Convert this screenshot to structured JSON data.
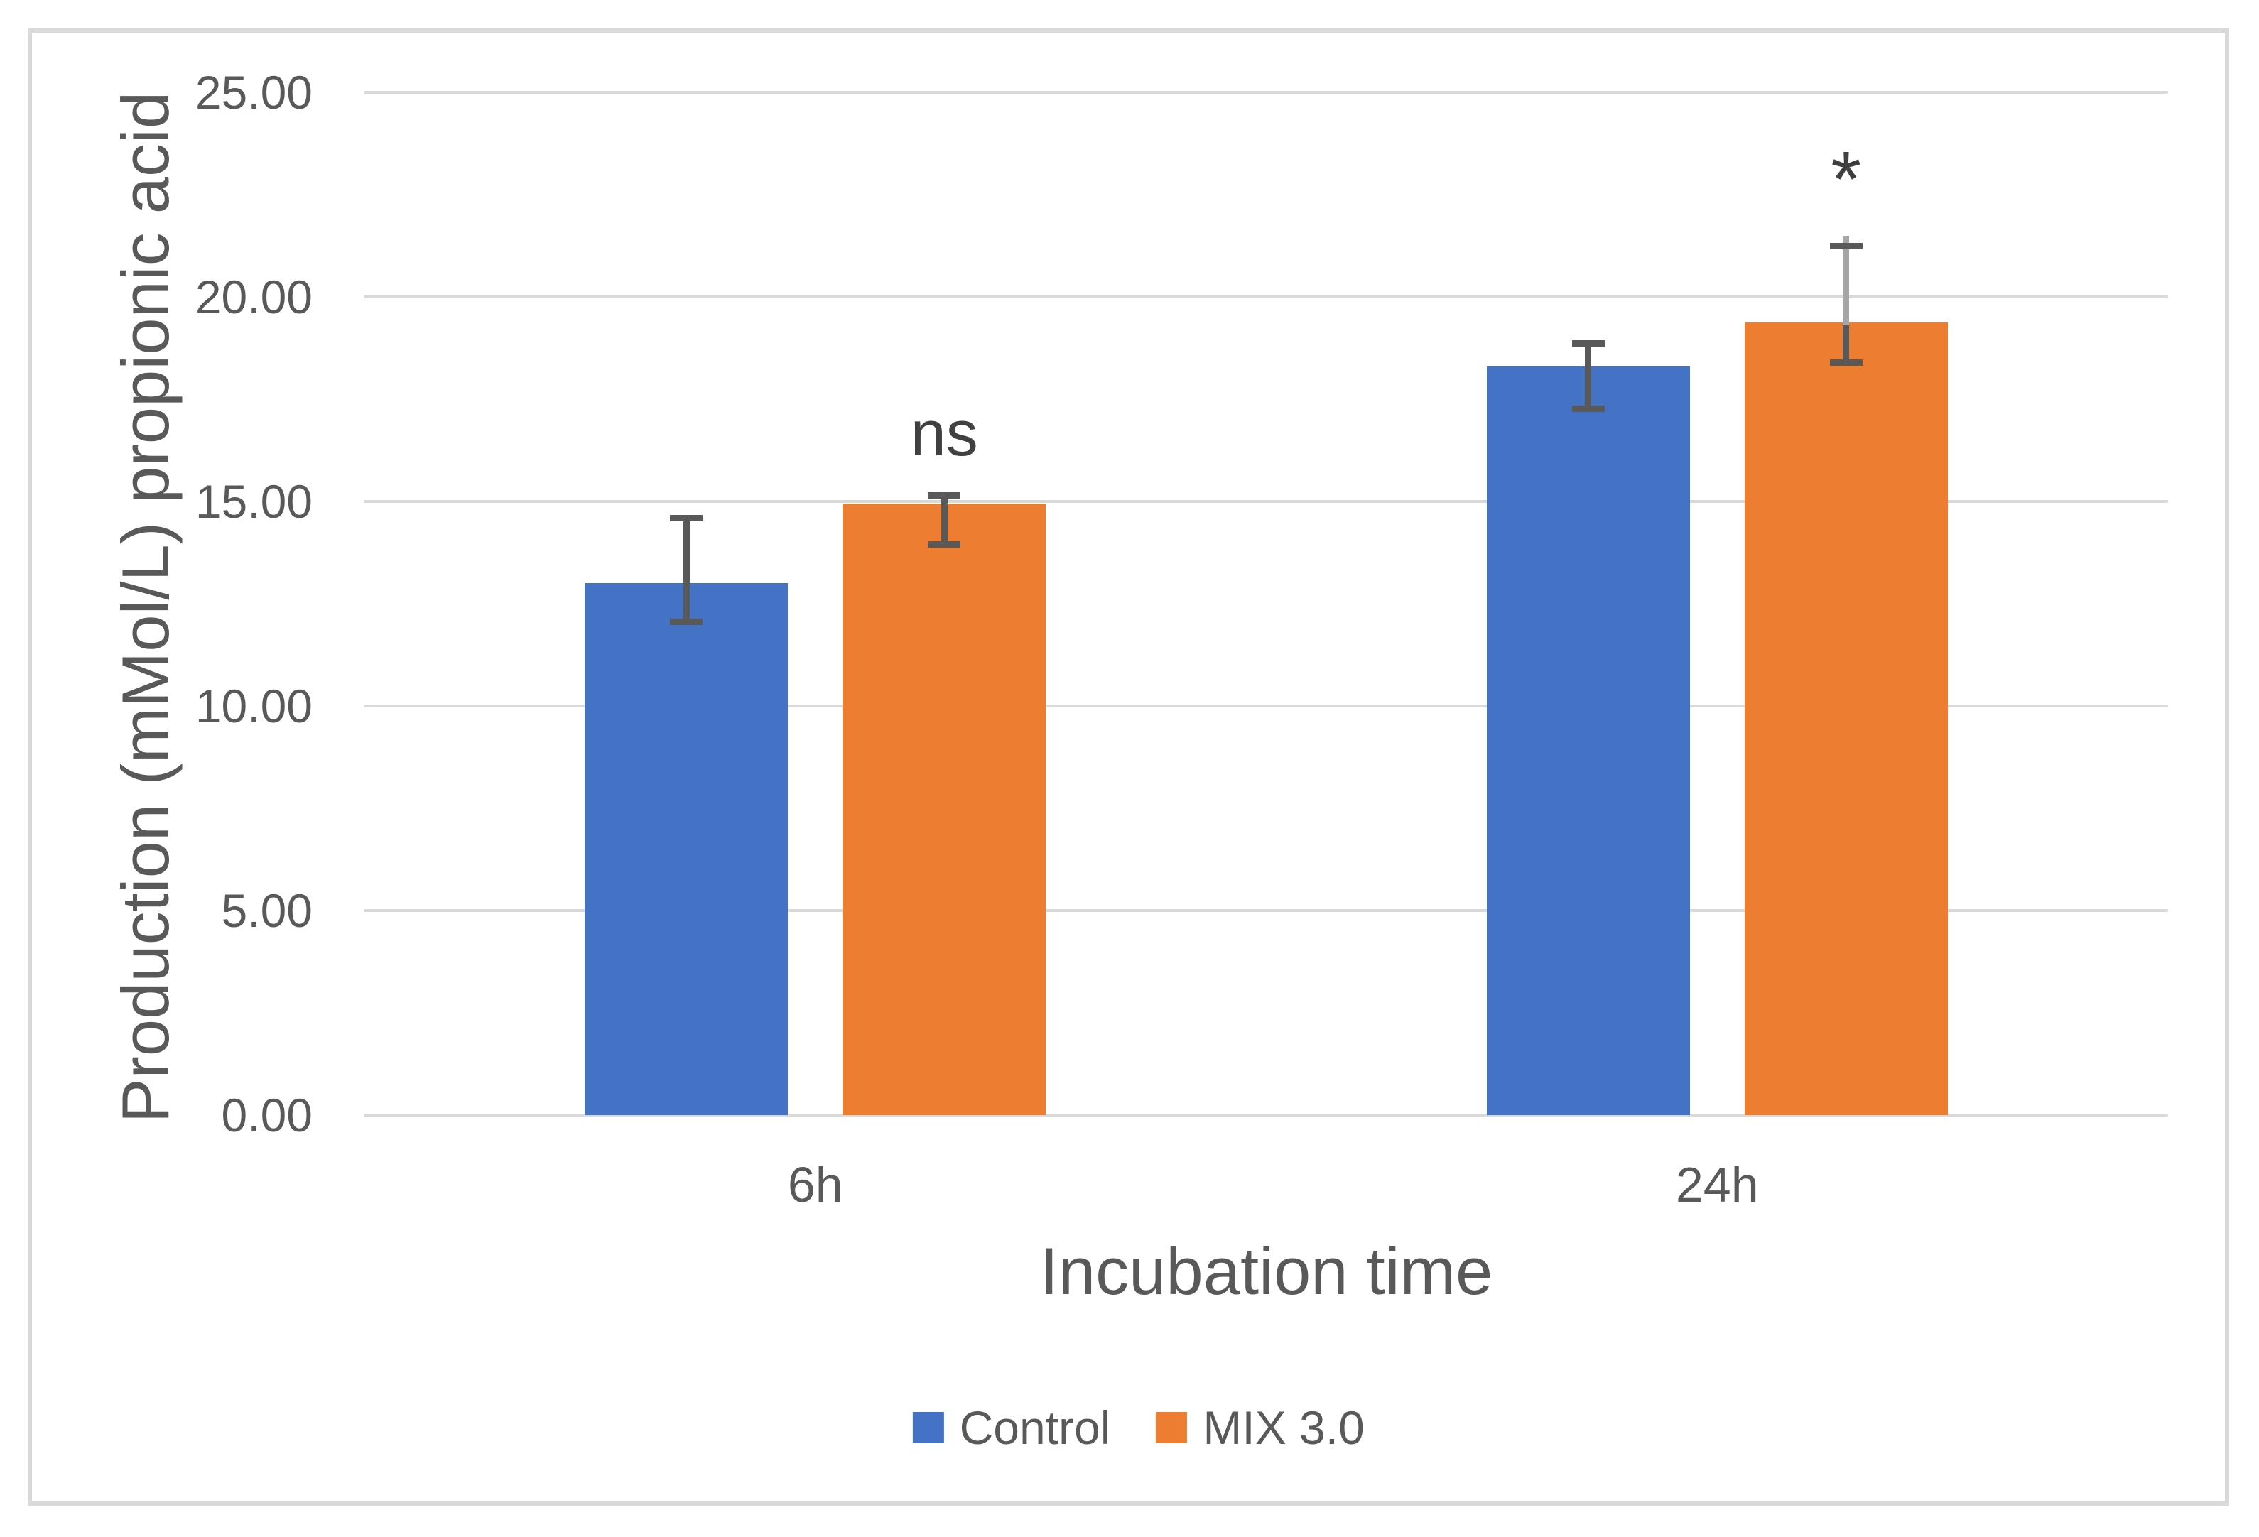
{
  "figure": {
    "background": "#FFFFFF",
    "border_color": "#D9D9D9"
  },
  "colors": {
    "control_blue": "#4472C4",
    "mix_orange": "#ED7D31",
    "gridline": "#D9D9D9",
    "error_bar": "#595959",
    "overlay_whisker": "#A6A6A6",
    "axis_text": "#595959",
    "annotation_text": "#404040"
  },
  "chart_data": {
    "type": "bar",
    "title": "",
    "xlabel": "Incubation time",
    "ylabel": "Production (mMol/L) propionic acid",
    "categories": [
      "6h",
      "24h"
    ],
    "series": [
      {
        "name": "Control",
        "color": "#4472C4",
        "values": [
          13.0,
          18.3
        ],
        "error_upper": [
          14.6,
          18.87
        ],
        "error_lower": [
          12.05,
          17.26
        ]
      },
      {
        "name": "MIX 3.0",
        "color": "#ED7D31",
        "values": [
          14.94,
          19.37
        ],
        "error_upper": [
          15.15,
          21.25
        ],
        "error_lower": [
          13.95,
          18.4
        ]
      }
    ],
    "ylim": [
      0,
      25
    ],
    "ytick_step": 5,
    "ytick_labels": [
      "0.00",
      "5.00",
      "10.00",
      "15.00",
      "20.00",
      "25.00"
    ],
    "grid": true,
    "legend_position": "bottom",
    "annotations": [
      {
        "text": "ns",
        "series": "MIX 3.0",
        "category": "6h"
      },
      {
        "text": "*",
        "series": "MIX 3.0",
        "category": "24h"
      }
    ],
    "overlay_whisker": {
      "series": "MIX 3.0",
      "category": "24h",
      "top_value": 21.5
    }
  }
}
